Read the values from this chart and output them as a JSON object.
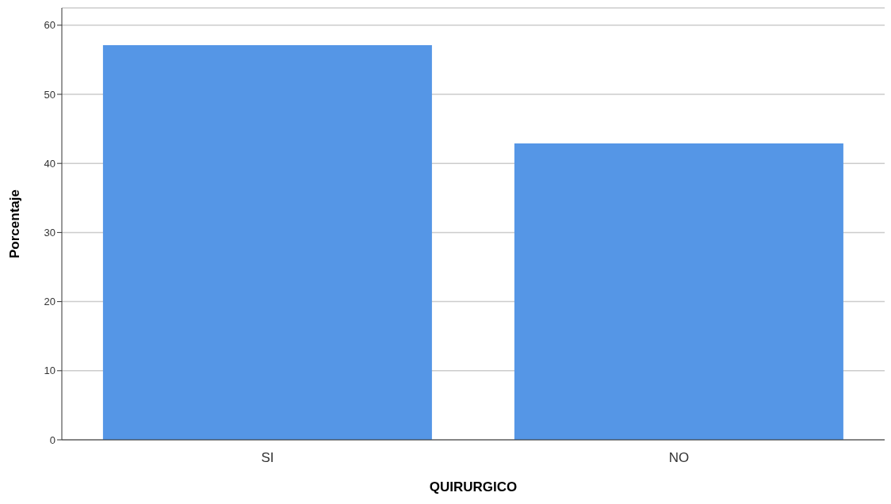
{
  "chart_data": {
    "type": "bar",
    "xlabel": "QUIRURGICO",
    "ylabel": "Porcentaje",
    "categories": [
      "SI",
      "NO"
    ],
    "values": [
      57.1,
      42.9
    ],
    "color": "#5596e6",
    "ylim": [
      0,
      62.5
    ],
    "yticks": [
      0,
      10,
      20,
      30,
      40,
      50,
      60
    ],
    "grid": "y"
  }
}
